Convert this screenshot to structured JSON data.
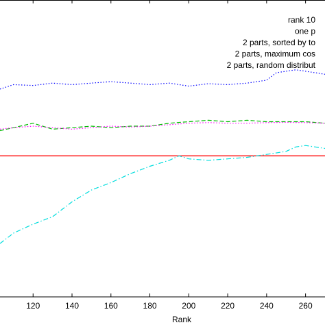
{
  "chart_data": {
    "type": "line",
    "xlabel": "Rank",
    "xlim": [
      103,
      270
    ],
    "ylim": [
      0,
      1
    ],
    "x_ticks": [
      120,
      140,
      160,
      180,
      200,
      220,
      240,
      260
    ],
    "x_tick_labels": [
      "120",
      "140",
      "160",
      "180",
      "200",
      "220",
      "240",
      "260"
    ],
    "grid": false,
    "legend_placement": "top-right",
    "series": [
      {
        "name": "rank 10",
        "color": "#ff0000",
        "style": "solid",
        "x": [
          103,
          270
        ],
        "y": [
          0.475,
          0.475
        ]
      },
      {
        "name": "one p",
        "color": "#0000ff",
        "style": "dotted",
        "x": [
          103,
          110,
          120,
          130,
          140,
          150,
          160,
          170,
          180,
          190,
          200,
          210,
          220,
          230,
          240,
          245,
          250,
          255,
          260,
          265,
          270
        ],
        "y": [
          0.7,
          0.715,
          0.712,
          0.72,
          0.715,
          0.72,
          0.725,
          0.72,
          0.715,
          0.72,
          0.71,
          0.718,
          0.715,
          0.72,
          0.73,
          0.755,
          0.76,
          0.765,
          0.76,
          0.755,
          0.75
        ]
      },
      {
        "name": "2 parts, sorted by to",
        "color": "#00bb00",
        "style": "dashed",
        "x": [
          103,
          110,
          120,
          130,
          140,
          150,
          160,
          170,
          180,
          190,
          200,
          210,
          220,
          230,
          240,
          250,
          260,
          270
        ],
        "y": [
          0.56,
          0.57,
          0.585,
          0.565,
          0.57,
          0.575,
          0.57,
          0.575,
          0.575,
          0.585,
          0.59,
          0.595,
          0.59,
          0.595,
          0.59,
          0.59,
          0.59,
          0.585
        ]
      },
      {
        "name": "2 parts, maximum cos",
        "color": "#ff00ff",
        "style": "dotted",
        "x": [
          103,
          110,
          120,
          130,
          140,
          150,
          160,
          170,
          180,
          190,
          200,
          210,
          220,
          230,
          240,
          250,
          260,
          270
        ],
        "y": [
          0.565,
          0.57,
          0.575,
          0.57,
          0.565,
          0.57,
          0.575,
          0.572,
          0.575,
          0.58,
          0.585,
          0.587,
          0.585,
          0.585,
          0.587,
          0.588,
          0.587,
          0.585
        ]
      },
      {
        "name": "2 parts, random distribut",
        "color": "#00dddd",
        "style": "dashdot",
        "x": [
          103,
          110,
          120,
          130,
          140,
          150,
          160,
          170,
          180,
          190,
          195,
          200,
          210,
          220,
          230,
          240,
          250,
          255,
          260,
          265,
          270
        ],
        "y": [
          0.18,
          0.215,
          0.245,
          0.27,
          0.32,
          0.36,
          0.385,
          0.415,
          0.44,
          0.46,
          0.475,
          0.465,
          0.46,
          0.465,
          0.47,
          0.48,
          0.49,
          0.505,
          0.51,
          0.505,
          0.5
        ]
      }
    ]
  }
}
